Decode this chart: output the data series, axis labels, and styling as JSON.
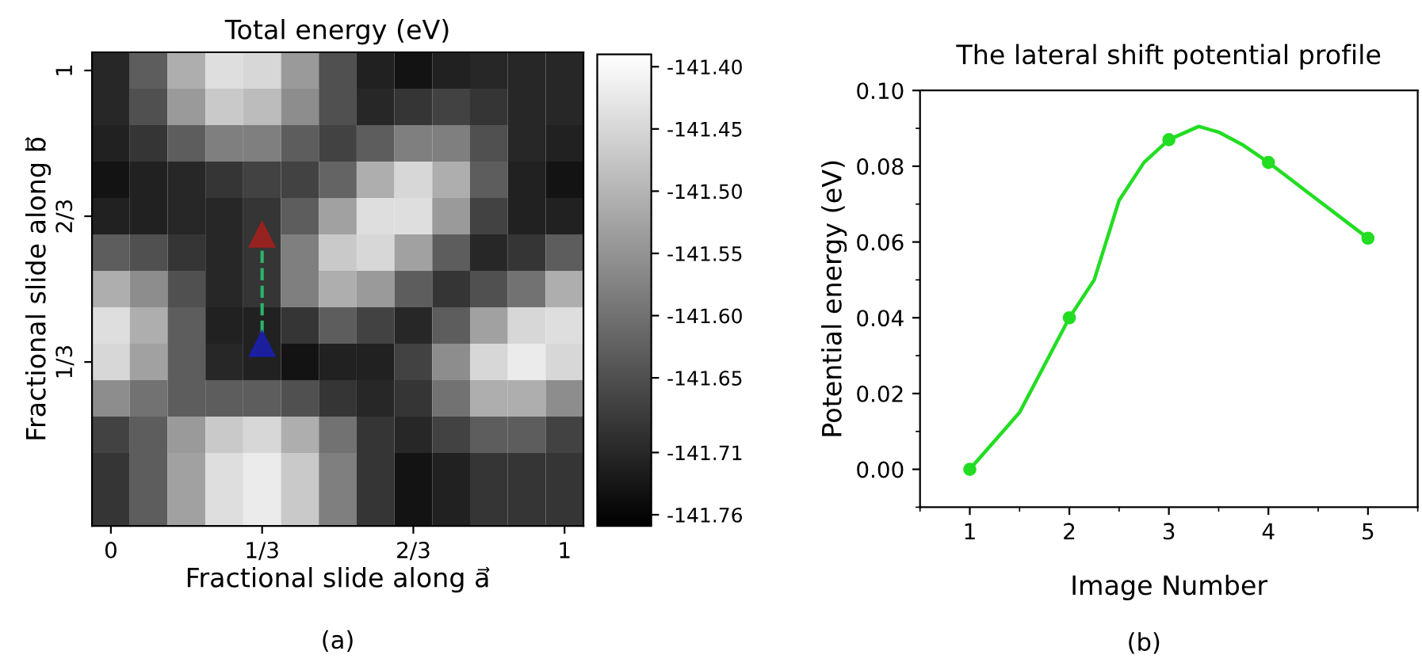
{
  "chart_data": [
    {
      "type": "heatmap",
      "title": "Total energy (eV)",
      "xlabel": "Fractional slide along a⃗",
      "ylabel": "Fractional slide along b⃗",
      "categories": [
        "0",
        null,
        null,
        null,
        "1/3",
        null,
        null,
        null,
        "2/3",
        null,
        null,
        null,
        "1"
      ],
      "y_categories": [
        "1",
        null,
        null,
        null,
        "2/3",
        null,
        null,
        null,
        "1/3",
        null,
        null,
        null,
        null
      ],
      "clim": [
        -141.769,
        -141.39
      ],
      "cticks": [
        {
          "value": -141.4,
          "label": "-141.40"
        },
        {
          "value": -141.45,
          "label": "-141.45"
        },
        {
          "value": -141.5,
          "label": "-141.50"
        },
        {
          "value": -141.55,
          "label": "-141.55"
        },
        {
          "value": -141.6,
          "label": "-141.60"
        },
        {
          "value": -141.65,
          "label": "-141.65"
        },
        -141.71,
        -141.76
      ],
      "cells": [
        [
          -141.71,
          -141.63,
          -141.51,
          -141.44,
          -141.45,
          -141.54,
          -141.65,
          -141.72,
          -141.74,
          -141.72,
          -141.71,
          -141.71,
          -141.71
        ],
        [
          -141.71,
          -141.65,
          -141.54,
          -141.47,
          -141.49,
          -141.56,
          -141.65,
          -141.71,
          -141.69,
          -141.67,
          -141.69,
          -141.71,
          -141.71
        ],
        [
          -141.72,
          -141.69,
          -141.63,
          -141.58,
          -141.58,
          -141.63,
          -141.67,
          -141.63,
          -141.58,
          -141.58,
          -141.65,
          -141.71,
          -141.72
        ],
        [
          -141.74,
          -141.72,
          -141.71,
          -141.69,
          -141.67,
          -141.67,
          -141.62,
          -141.51,
          -141.45,
          -141.51,
          -141.63,
          -141.72,
          -141.74
        ],
        [
          -141.72,
          -141.72,
          -141.71,
          -141.71,
          -141.69,
          -141.63,
          -141.53,
          -141.44,
          -141.44,
          -141.54,
          -141.67,
          -141.72,
          -141.72
        ],
        [
          -141.63,
          -141.65,
          -141.69,
          -141.71,
          -141.69,
          -141.58,
          -141.47,
          -141.45,
          -141.53,
          -141.63,
          -141.71,
          -141.69,
          -141.63
        ],
        [
          -141.51,
          -141.56,
          -141.65,
          -141.71,
          -141.69,
          -141.58,
          -141.51,
          -141.54,
          -141.63,
          -141.69,
          -141.65,
          -141.6,
          -141.51
        ],
        [
          -141.44,
          -141.51,
          -141.63,
          -141.72,
          -141.72,
          -141.69,
          -141.63,
          -141.67,
          -141.71,
          -141.63,
          -141.53,
          -141.45,
          -141.44
        ],
        [
          -141.45,
          -141.53,
          -141.63,
          -141.71,
          -141.72,
          -141.74,
          -141.72,
          -141.72,
          -141.67,
          -141.56,
          -141.45,
          -141.42,
          -141.45
        ],
        [
          -141.56,
          -141.6,
          -141.63,
          -141.63,
          -141.63,
          -141.65,
          -141.69,
          -141.71,
          -141.69,
          -141.6,
          -141.51,
          -141.51,
          -141.56
        ],
        [
          -141.67,
          -141.63,
          -141.54,
          -141.47,
          -141.45,
          -141.51,
          -141.6,
          -141.69,
          -141.71,
          -141.67,
          -141.63,
          -141.63,
          -141.67
        ],
        [
          -141.69,
          -141.63,
          -141.53,
          -141.44,
          -141.42,
          -141.47,
          -141.58,
          -141.69,
          -141.74,
          -141.72,
          -141.69,
          -141.69,
          -141.69
        ],
        [
          -141.69,
          -141.63,
          -141.53,
          -141.44,
          -141.42,
          -141.47,
          -141.58,
          -141.69,
          -141.74,
          -141.72,
          -141.69,
          -141.69,
          -141.69
        ]
      ],
      "annotations": [
        "(a)"
      ]
    },
    {
      "type": "line",
      "title": "The lateral shift potential profile",
      "xlabel": "Image Number",
      "ylabel": "Potential energy (eV)",
      "xlim": [
        0.5,
        5.5
      ],
      "xticks": [
        1,
        2,
        3,
        4,
        5
      ],
      "ylim": [
        -0.01,
        0.1
      ],
      "yticks": [
        {
          "value": 0,
          "label": "0.00"
        },
        {
          "value": 0.02,
          "label": "0.02"
        },
        {
          "value": 0.04,
          "label": "0.04"
        },
        {
          "value": 0.06,
          "label": "0.06"
        },
        {
          "value": 0.08,
          "label": "0.08"
        },
        {
          "value": 0.1,
          "label": "0.10"
        }
      ],
      "series": [
        {
          "type": "line",
          "x": [
            1,
            1.5,
            2,
            2.25,
            2.5,
            2.75,
            3,
            3.3,
            3.5,
            3.75,
            4,
            4.5,
            5
          ],
          "values": [
            0.0,
            0.015,
            0.04,
            0.05,
            0.071,
            0.081,
            0.087,
            0.0905,
            0.089,
            0.0855,
            0.081,
            0.071,
            0.061
          ],
          "color": "#22dd22",
          "marker": "none"
        },
        {
          "type": "scatter",
          "x": [
            1,
            2,
            3,
            4,
            5
          ],
          "values": [
            0.0,
            0.04,
            0.087,
            0.081,
            0.061
          ],
          "color": "#22dd22",
          "marker": "circle"
        }
      ],
      "annotations": [
        "(b)"
      ],
      "grid": false
    }
  ]
}
